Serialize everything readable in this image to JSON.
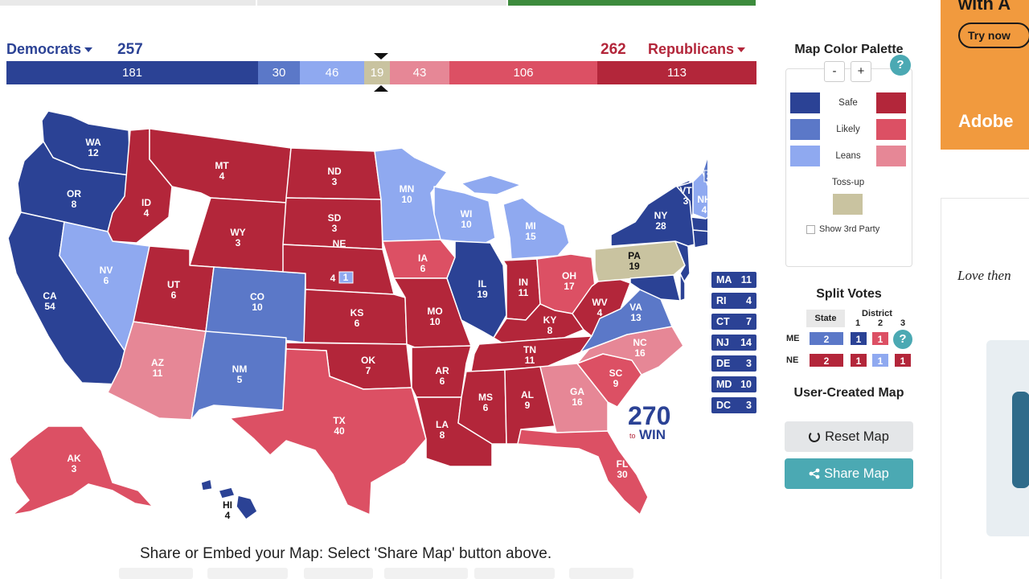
{
  "header": {
    "dem_label": "Democrats",
    "dem_total": "257",
    "rep_total": "262",
    "rep_label": "Republicans"
  },
  "tally": [
    {
      "value": "181",
      "color": "#2b4295"
    },
    {
      "value": "30",
      "color": "#5b78c8"
    },
    {
      "value": "46",
      "color": "#8fa9f0"
    },
    {
      "value": "19",
      "color": "#c9c3a0"
    },
    {
      "value": "43",
      "color": "#e68796"
    },
    {
      "value": "106",
      "color": "#dc5064"
    },
    {
      "value": "113",
      "color": "#b3263a"
    }
  ],
  "colors": {
    "safe_d": "#2b4295",
    "likely_d": "#5b78c8",
    "lean_d": "#8fa9f0",
    "tossup": "#c9c3a0",
    "lean_r": "#e68796",
    "likely_r": "#dc5064",
    "safe_r": "#b3263a"
  },
  "states": {
    "WA": {
      "label": "WA",
      "ev": "12"
    },
    "OR": {
      "label": "OR",
      "ev": "8"
    },
    "CA": {
      "label": "CA",
      "ev": "54"
    },
    "ID": {
      "label": "ID",
      "ev": "4"
    },
    "NV": {
      "label": "NV",
      "ev": "6"
    },
    "MT": {
      "label": "MT",
      "ev": "4"
    },
    "WY": {
      "label": "WY",
      "ev": "3"
    },
    "UT": {
      "label": "UT",
      "ev": "6"
    },
    "AZ": {
      "label": "AZ",
      "ev": "11"
    },
    "CO": {
      "label": "CO",
      "ev": "10"
    },
    "NM": {
      "label": "NM",
      "ev": "5"
    },
    "ND": {
      "label": "ND",
      "ev": "3"
    },
    "SD": {
      "label": "SD",
      "ev": "3"
    },
    "NE": {
      "label": "NE",
      "ev": "4",
      "district": "1"
    },
    "KS": {
      "label": "KS",
      "ev": "6"
    },
    "OK": {
      "label": "OK",
      "ev": "7"
    },
    "TX": {
      "label": "TX",
      "ev": "40"
    },
    "MN": {
      "label": "MN",
      "ev": "10"
    },
    "IA": {
      "label": "IA",
      "ev": "6"
    },
    "MO": {
      "label": "MO",
      "ev": "10"
    },
    "AR": {
      "label": "AR",
      "ev": "6"
    },
    "LA": {
      "label": "LA",
      "ev": "8"
    },
    "WI": {
      "label": "WI",
      "ev": "10"
    },
    "IL": {
      "label": "IL",
      "ev": "19"
    },
    "MI": {
      "label": "MI",
      "ev": "15"
    },
    "IN": {
      "label": "IN",
      "ev": "11"
    },
    "OH": {
      "label": "OH",
      "ev": "17"
    },
    "KY": {
      "label": "KY",
      "ev": "8"
    },
    "TN": {
      "label": "TN",
      "ev": "11"
    },
    "MS": {
      "label": "MS",
      "ev": "6"
    },
    "AL": {
      "label": "AL",
      "ev": "9"
    },
    "GA": {
      "label": "GA",
      "ev": "16"
    },
    "FL": {
      "label": "FL",
      "ev": "30"
    },
    "SC": {
      "label": "SC",
      "ev": "9"
    },
    "NC": {
      "label": "NC",
      "ev": "16"
    },
    "VA": {
      "label": "VA",
      "ev": "13"
    },
    "WV": {
      "label": "WV",
      "ev": "4"
    },
    "PA": {
      "label": "PA",
      "ev": "19"
    },
    "NY": {
      "label": "NY",
      "ev": "28"
    },
    "VT": {
      "label": "VT",
      "ev": "3"
    },
    "NH": {
      "label": "NH",
      "ev": "4"
    },
    "ME": {
      "label": "ME",
      "d1": "2",
      "d2": "1",
      "d3": "1"
    },
    "AK": {
      "label": "AK",
      "ev": "3"
    },
    "HI": {
      "label": "HI",
      "ev": "4"
    }
  },
  "small_states": [
    {
      "abbr": "MA",
      "ev": "11"
    },
    {
      "abbr": "RI",
      "ev": "4"
    },
    {
      "abbr": "CT",
      "ev": "7"
    },
    {
      "abbr": "NJ",
      "ev": "14"
    },
    {
      "abbr": "DE",
      "ev": "3"
    },
    {
      "abbr": "MD",
      "ev": "10"
    },
    {
      "abbr": "DC",
      "ev": "3"
    }
  ],
  "logo": {
    "number": "270",
    "small": "to",
    "word": "WIN"
  },
  "palette": {
    "title": "Map Color Palette",
    "minus": "-",
    "plus": "+",
    "help": "?",
    "safe": "Safe",
    "likely": "Likely",
    "leans": "Leans",
    "tossup": "Toss-up",
    "third_party": "Show 3rd Party"
  },
  "split_votes": {
    "title": "Split Votes",
    "state_header": "State",
    "district_header": "District",
    "d1": "1",
    "d2": "2",
    "d3": "3",
    "me_label": "ME",
    "ne_label": "NE",
    "me_state": "2",
    "me_d1": "1",
    "me_d2": "1",
    "help": "?",
    "ne_state": "2",
    "ne_d1": "1",
    "ne_d2": "1",
    "ne_d3": "1"
  },
  "user_map": {
    "title": "User-Created Map",
    "reset": "Reset Map",
    "share": "Share Map"
  },
  "share_text": "Share or Embed your Map: Select 'Share Map' button above.",
  "ads": {
    "top_text": "with A",
    "try_now": "Try now",
    "brand": "Adobe",
    "quote": "Love then"
  }
}
